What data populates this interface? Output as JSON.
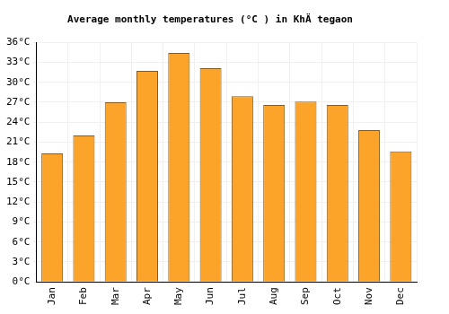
{
  "chart_data": {
    "type": "bar",
    "title": "Average monthly temperatures (°C ) in KhÄ tegaon",
    "categories": [
      "Jan",
      "Feb",
      "Mar",
      "Apr",
      "May",
      "Jun",
      "Jul",
      "Aug",
      "Sep",
      "Oct",
      "Nov",
      "Dec"
    ],
    "values": [
      19.3,
      22,
      27,
      31.7,
      34.4,
      32.1,
      27.9,
      26.6,
      27.1,
      26.6,
      22.8,
      19.6
    ],
    "color": "#fca42a",
    "ylim": [
      0,
      36
    ],
    "yticks": [
      {
        "value": 0,
        "label": "0°C"
      },
      {
        "value": 3,
        "label": "3°C"
      },
      {
        "value": 6,
        "label": "6°C"
      },
      {
        "value": 9,
        "label": "9°C"
      },
      {
        "value": 12,
        "label": "12°C"
      },
      {
        "value": 15,
        "label": "15°C"
      },
      {
        "value": 18,
        "label": "18°C"
      },
      {
        "value": 21,
        "label": "21°C"
      },
      {
        "value": 24,
        "label": "24°C"
      },
      {
        "value": 27,
        "label": "27°C"
      },
      {
        "value": 30,
        "label": "30°C"
      },
      {
        "value": 33,
        "label": "33°C"
      },
      {
        "value": 36,
        "label": "36°C"
      }
    ],
    "grid": true
  }
}
